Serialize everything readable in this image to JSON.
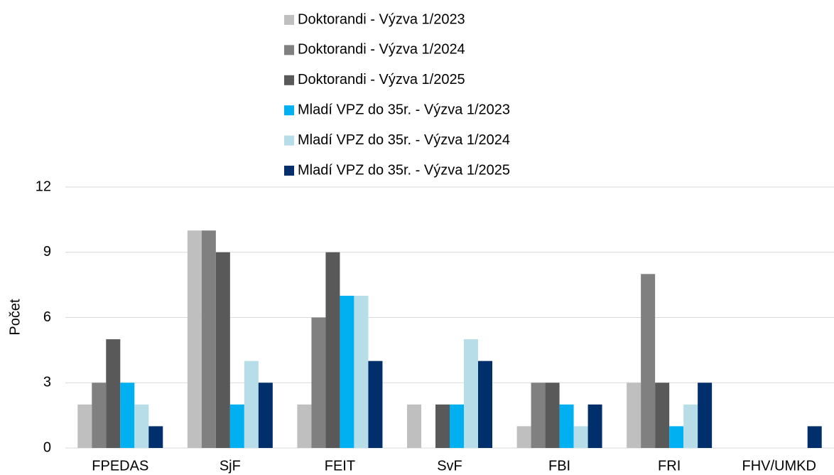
{
  "chart_data": {
    "type": "bar",
    "y_label": "Počet",
    "categories": [
      "FPEDAS",
      "SjF",
      "FEIT",
      "SvF",
      "FBI",
      "FRI",
      "FHV/UMKD"
    ],
    "series": [
      {
        "name": "Doktorandi - Výzva 1/2023",
        "color": "#bfbfbf",
        "values": [
          2,
          10,
          2,
          2,
          1,
          3,
          0
        ]
      },
      {
        "name": "Doktorandi - Výzva 1/2024",
        "color": "#808080",
        "values": [
          3,
          10,
          6,
          0,
          3,
          8,
          0
        ]
      },
      {
        "name": "Doktorandi - Výzva 1/2025",
        "color": "#595959",
        "values": [
          5,
          9,
          9,
          2,
          3,
          3,
          0
        ]
      },
      {
        "name": "Mladí VPZ do 35r. - Výzva 1/2023",
        "color": "#00b0f0",
        "values": [
          3,
          2,
          7,
          2,
          2,
          1,
          0
        ]
      },
      {
        "name": "Mladí VPZ do 35r. - Výzva 1/2024",
        "color": "#b7dde8",
        "values": [
          2,
          4,
          7,
          5,
          1,
          2,
          0
        ]
      },
      {
        "name": "Mladí VPZ do 35r. - Výzva 1/2025",
        "color": "#002f6c",
        "values": [
          1,
          3,
          4,
          4,
          2,
          3,
          1
        ]
      }
    ],
    "ylim": [
      0,
      12
    ],
    "yticks": [
      0,
      3,
      6,
      9,
      12
    ],
    "grid": true,
    "legend": "top"
  }
}
